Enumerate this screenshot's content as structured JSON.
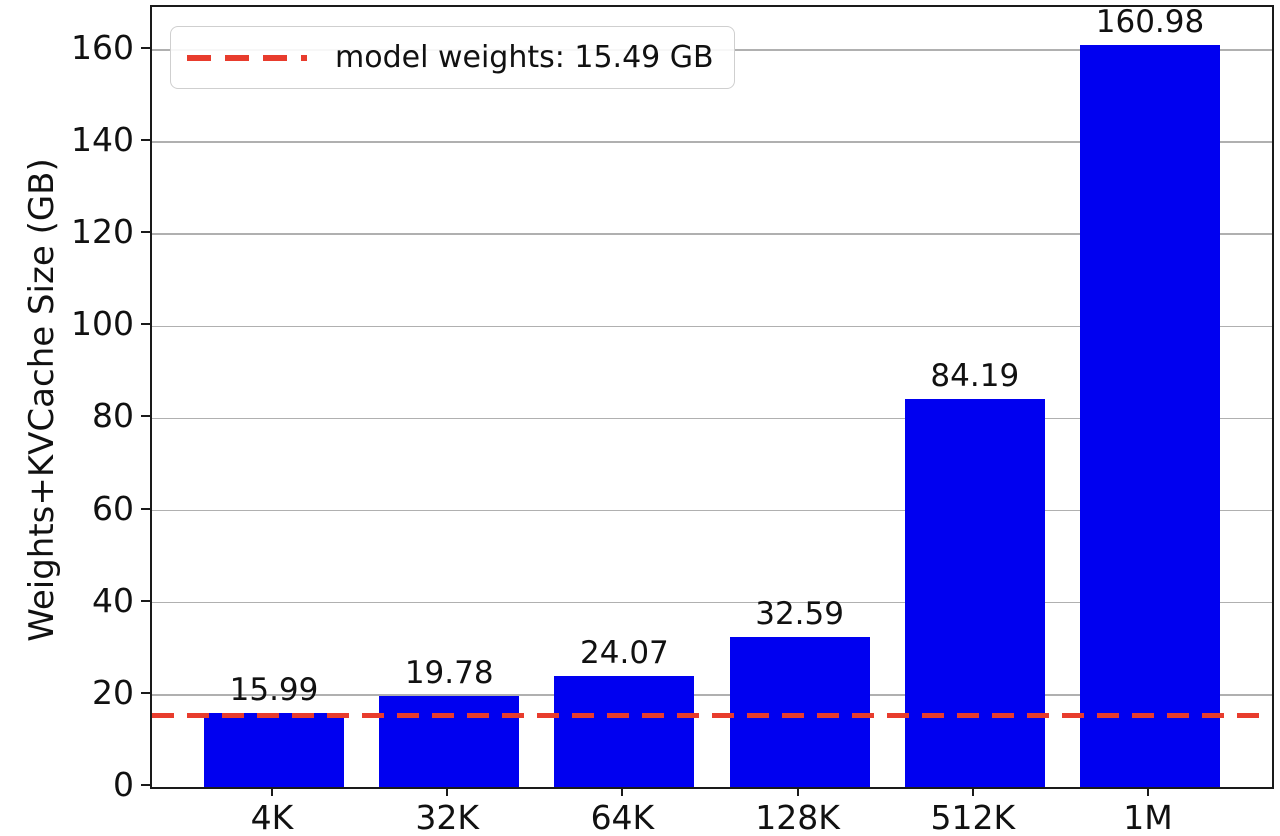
{
  "chart_data": {
    "type": "bar",
    "categories": [
      "4K",
      "32K",
      "64K",
      "128K",
      "512K",
      "1M"
    ],
    "values": [
      15.99,
      19.78,
      24.07,
      32.59,
      84.19,
      160.98
    ],
    "bar_value_labels": [
      "15.99",
      "19.78",
      "24.07",
      "32.59",
      "84.19",
      "160.98"
    ],
    "title": "",
    "xlabel": "",
    "ylabel": "Weights+KVCache Size (GB)",
    "yticks": [
      0,
      20,
      40,
      60,
      80,
      100,
      120,
      140,
      160
    ],
    "ylim": [
      0,
      169.3
    ],
    "grid": "horizontal",
    "grid_color": "#b0b0b0",
    "bar_color": "#0000f0",
    "legend": {
      "position": "upper-left",
      "entries": [
        {
          "label": "model weights: 15.49 GB",
          "line_style": "dashed",
          "line_color": "#e83c2d"
        }
      ]
    },
    "reference_line": {
      "value": 15.49,
      "style": "dashed",
      "color": "#e83c2d",
      "label": "model weights: 15.49 GB"
    }
  }
}
